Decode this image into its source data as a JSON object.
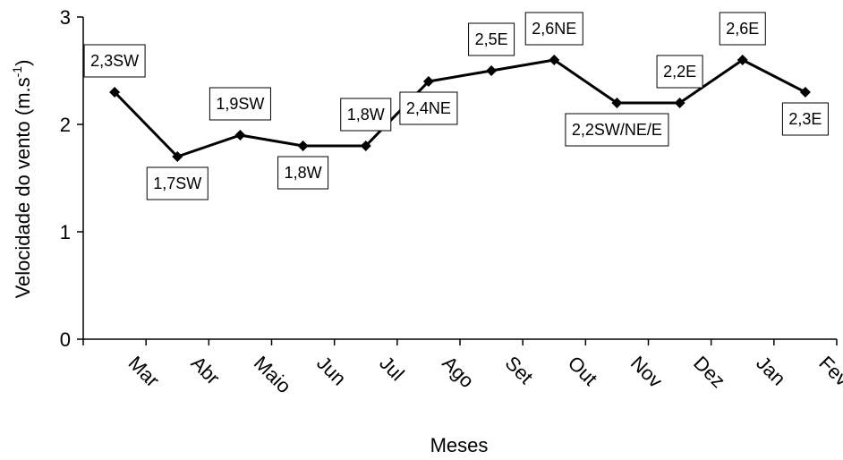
{
  "chart_data": {
    "type": "line",
    "categories": [
      "Mar",
      "Abr",
      "Maio",
      "Jun",
      "Jul",
      "Ago",
      "Set",
      "Out",
      "Nov",
      "Dez",
      "Jan",
      "Fev"
    ],
    "values": [
      2.3,
      1.7,
      1.9,
      1.8,
      1.8,
      2.4,
      2.5,
      2.6,
      2.2,
      2.2,
      2.6,
      2.3
    ],
    "data_labels": [
      "2,3SW",
      "1,7SW",
      "1,9SW",
      "1,8W",
      "1,8W",
      "2,4NE",
      "2,5E",
      "2,6NE",
      "2,2SW/NE/E",
      "2,2E",
      "2,6E",
      "2,3E"
    ],
    "data_label_placement": [
      "above",
      "below",
      "above",
      "below",
      "above",
      "below",
      "above",
      "above",
      "below",
      "above",
      "above",
      "below"
    ],
    "xlabel": "Meses",
    "ylabel": "Velocidade do vento (m.s-1)",
    "ylabel_main": "Velocidade do vento (m.s",
    "ylabel_exponent": "-1",
    "ylabel_close": ")",
    "ylim": [
      0,
      3
    ],
    "yticks": [
      "0",
      "1",
      "2",
      "3"
    ],
    "xtick_rotation": "45deg",
    "grid": false,
    "legend": "none",
    "colors": {
      "line": "#000000",
      "marker": "#000000",
      "axis": "#000000",
      "label_box_border": "#000000"
    }
  }
}
